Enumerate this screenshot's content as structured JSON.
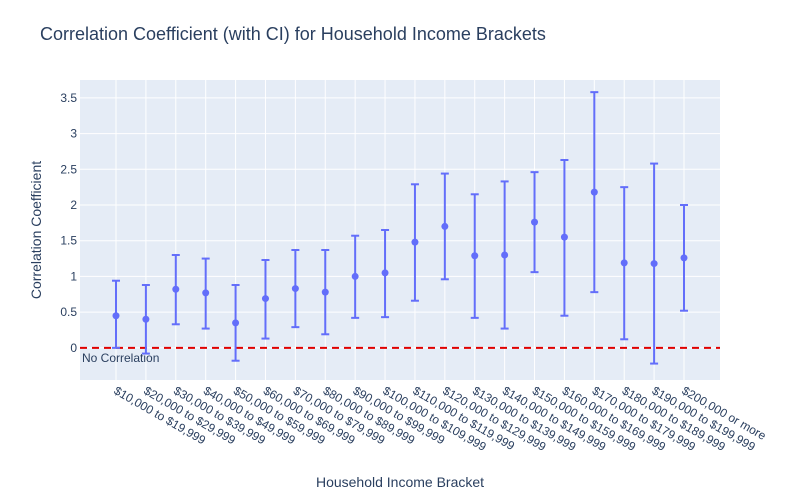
{
  "chart_data": {
    "type": "scatter",
    "title": "Correlation Coefficient (with CI) for Household Income Brackets",
    "xlabel": "Household Income Bracket",
    "ylabel": "Correlation Coefficient",
    "ylim": [
      -0.45,
      3.75
    ],
    "yticks": [
      0,
      0.5,
      1,
      1.5,
      2,
      2.5,
      3,
      3.5
    ],
    "ytick_labels": [
      "0",
      "0.5",
      "1",
      "1.5",
      "2",
      "2.5",
      "3",
      "3.5"
    ],
    "grid": true,
    "categories": [
      "$10,000 to $19,999",
      "$20,000 to $29,999",
      "$30,000 to $39,999",
      "$40,000 to $49,999",
      "$50,000 to $59,999",
      "$60,000 to $69,999",
      "$70,000 to $79,999",
      "$80,000 to $89,999",
      "$90,000 to $99,999",
      "$100,000 to $109,999",
      "$110,000 to $119,999",
      "$120,000 to $129,999",
      "$130,000 to $139,999",
      "$140,000 to $149,999",
      "$150,000 to $159,999",
      "$160,000 to $169,999",
      "$170,000 to $179,999",
      "$180,000 to $189,999",
      "$190,000 to $199,999",
      "$200,000 or more"
    ],
    "values": [
      0.45,
      0.4,
      0.82,
      0.77,
      0.35,
      0.69,
      0.83,
      0.78,
      1.0,
      1.05,
      1.48,
      1.7,
      1.29,
      1.3,
      1.76,
      1.55,
      2.18,
      1.19,
      1.18,
      1.26
    ],
    "ci_lower": [
      0.0,
      -0.08,
      0.33,
      0.27,
      -0.18,
      0.13,
      0.29,
      0.19,
      0.42,
      0.43,
      0.66,
      0.96,
      0.42,
      0.27,
      1.06,
      0.45,
      0.78,
      0.12,
      -0.22,
      0.52
    ],
    "ci_upper": [
      0.94,
      0.88,
      1.3,
      1.25,
      0.88,
      1.23,
      1.37,
      1.37,
      1.57,
      1.65,
      2.29,
      2.44,
      2.15,
      2.33,
      2.46,
      2.63,
      3.58,
      2.25,
      2.58,
      2.0
    ],
    "reference_line": {
      "y": 0,
      "label": "No Correlation",
      "color": "#e00000"
    },
    "marker_color": "#636efa"
  }
}
